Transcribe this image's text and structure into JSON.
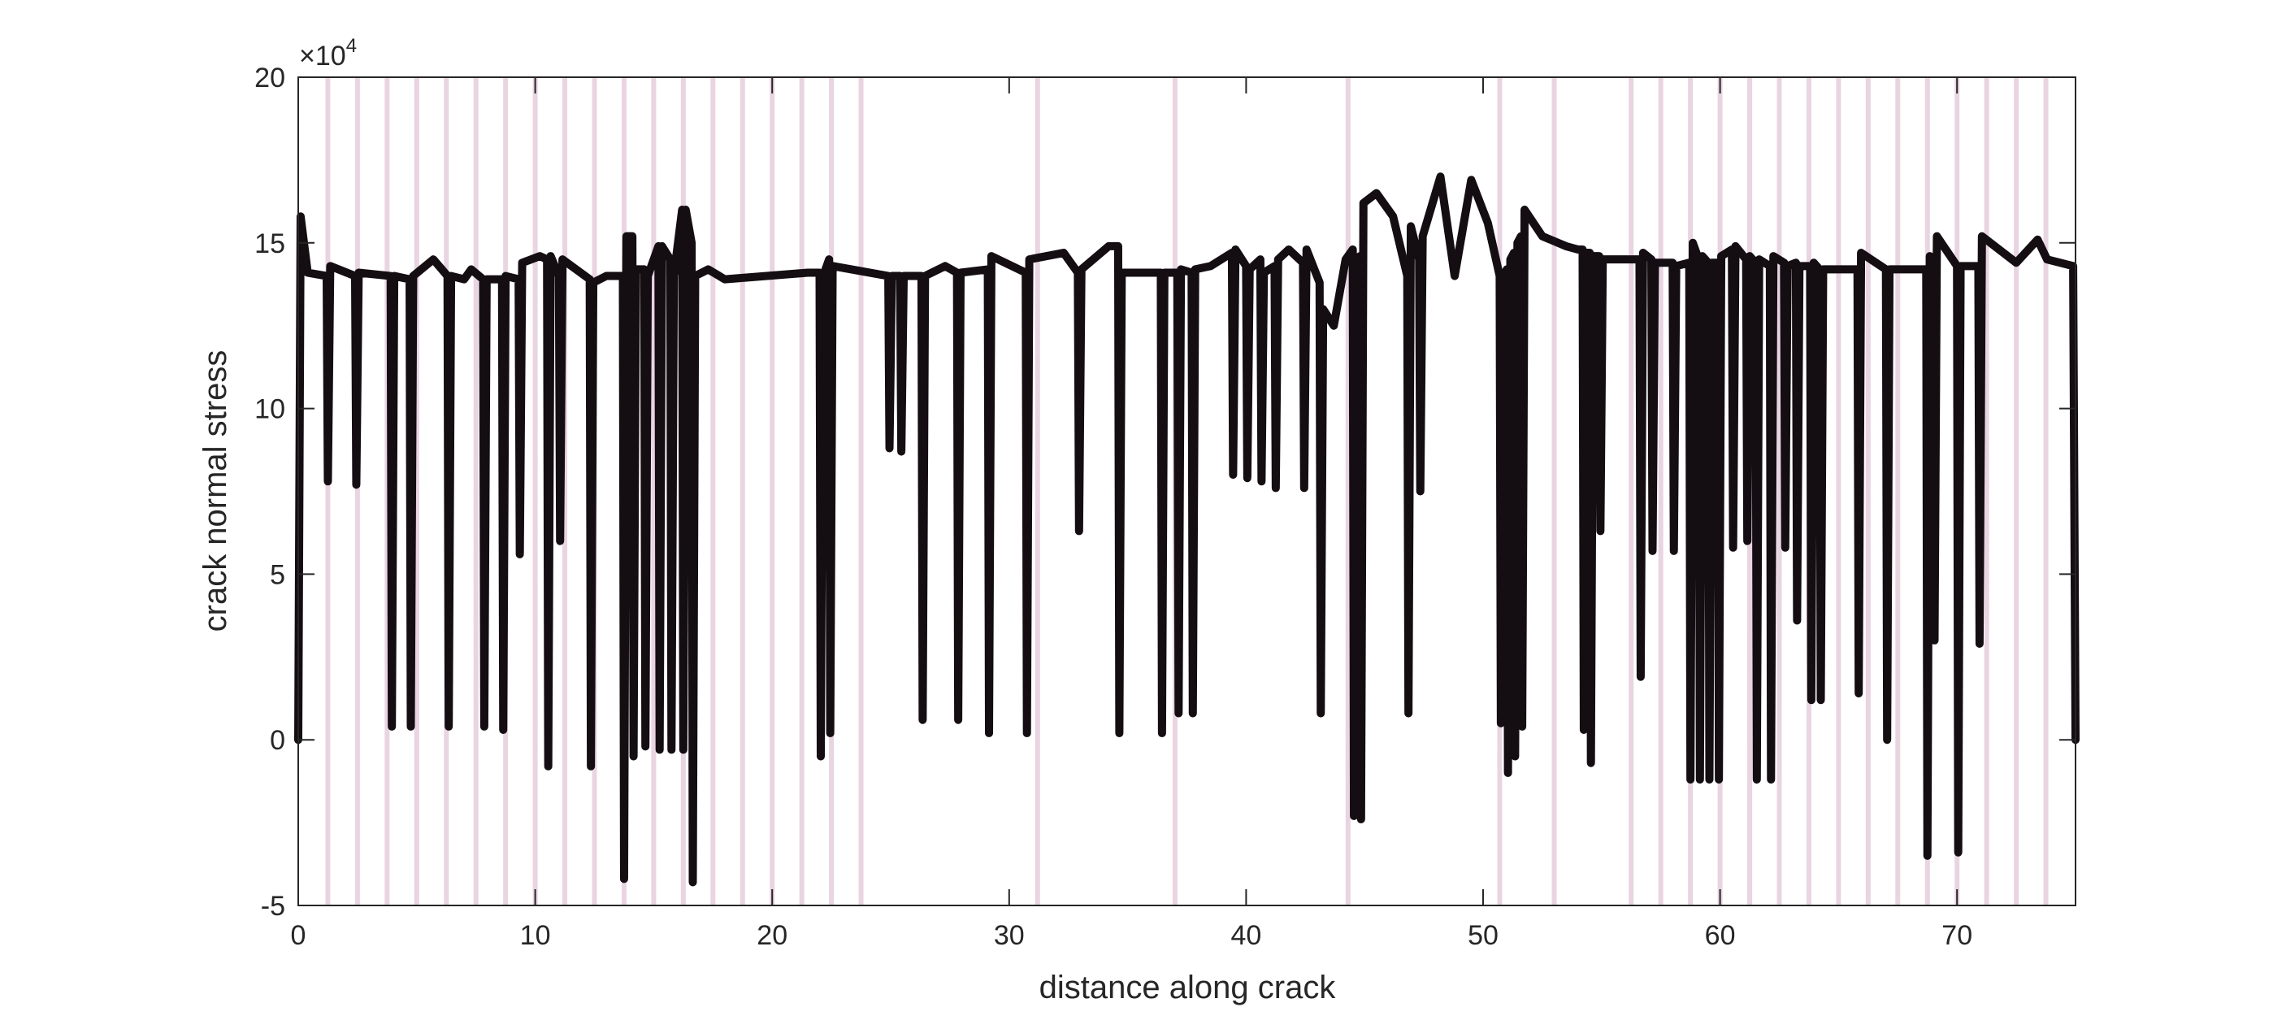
{
  "chart_data": {
    "type": "line",
    "x_label": "distance along crack",
    "y_label": "crack normal stress",
    "y_multiplier": {
      "base": "×10",
      "exponent": "4"
    },
    "xlim": [
      0,
      75
    ],
    "xticks": [
      0,
      10,
      20,
      30,
      40,
      50,
      60,
      70
    ],
    "ylim": [
      -5,
      20
    ],
    "yticks": [
      -5,
      0,
      5,
      10,
      15,
      20
    ],
    "vertical_lines": {
      "color": "#e9d4e2",
      "x": [
        1.25,
        2.5,
        3.75,
        5,
        6.25,
        7.5,
        8.75,
        10,
        11.25,
        12.5,
        13.75,
        15,
        16.25,
        17.5,
        18.75,
        20,
        21.25,
        22.5,
        23.75,
        31.2,
        37.0,
        44.3,
        50.7,
        53.0,
        56.25,
        57.5,
        58.75,
        60,
        61.25,
        62.5,
        63.75,
        65,
        66.25,
        67.5,
        68.75,
        70,
        71.25,
        72.5,
        73.75
      ]
    },
    "series": [
      {
        "color": "#140d12",
        "x": [
          0,
          0.1,
          0.4,
          1.2,
          1.25,
          1.35,
          2.4,
          2.45,
          2.55,
          3.9,
          3.95,
          4.05,
          4.7,
          4.75,
          4.85,
          5.7,
          6.3,
          6.35,
          6.45,
          7.0,
          7.3,
          7.8,
          7.85,
          7.95,
          8.6,
          8.65,
          8.75,
          9.3,
          9.35,
          9.45,
          10.2,
          10.5,
          10.55,
          10.65,
          11.0,
          11.05,
          11.15,
          12.3,
          12.35,
          12.45,
          13.0,
          13.7,
          13.75,
          13.85,
          14.1,
          14.15,
          14.25,
          14.6,
          14.65,
          14.75,
          15.2,
          15.25,
          15.35,
          15.7,
          15.75,
          15.85,
          16.2,
          16.25,
          16.35,
          16.6,
          16.65,
          16.75,
          17.3,
          18,
          21.5,
          22.0,
          22.05,
          22.15,
          22.4,
          22.45,
          22.55,
          24.9,
          24.95,
          25.05,
          25.4,
          25.45,
          25.55,
          26.3,
          26.35,
          26.45,
          27.3,
          27.8,
          27.85,
          27.95,
          29.1,
          29.15,
          29.25,
          30.7,
          30.75,
          30.85,
          32.3,
          32.9,
          32.95,
          33.05,
          34.2,
          34.6,
          34.65,
          34.75,
          36.4,
          36.45,
          36.55,
          37.1,
          37.15,
          37.25,
          37.7,
          37.75,
          37.85,
          38.5,
          39.4,
          39.45,
          39.55,
          40.0,
          40.05,
          40.15,
          40.6,
          40.65,
          40.75,
          41.2,
          41.25,
          41.35,
          41.8,
          42.4,
          42.45,
          42.55,
          43.1,
          43.15,
          43.25,
          43.7,
          44.2,
          44.5,
          44.55,
          44.65,
          44.8,
          44.85,
          44.95,
          45.5,
          46.2,
          46.8,
          46.85,
          46.95,
          47.3,
          47.35,
          47.45,
          48.2,
          48.8,
          49.5,
          50.2,
          50.7,
          50.75,
          50.85,
          51.0,
          51.05,
          51.15,
          51.3,
          51.35,
          51.45,
          51.6,
          51.65,
          51.75,
          52.5,
          53.5,
          54.0,
          54.2,
          54.25,
          54.35,
          54.5,
          54.55,
          54.65,
          54.9,
          54.95,
          55.05,
          56.6,
          56.65,
          56.75,
          57.1,
          57.15,
          57.25,
          58.0,
          58.05,
          58.15,
          58.7,
          58.75,
          58.85,
          59.1,
          59.15,
          59.25,
          59.5,
          59.55,
          59.65,
          59.9,
          59.95,
          60.05,
          60.5,
          60.55,
          60.65,
          61.1,
          61.15,
          61.25,
          61.5,
          61.55,
          61.65,
          62.1,
          62.15,
          62.25,
          62.7,
          62.75,
          62.85,
          63.2,
          63.25,
          63.35,
          63.8,
          63.85,
          63.95,
          64.2,
          64.25,
          64.35,
          65.8,
          65.85,
          65.95,
          67.0,
          67.05,
          67.15,
          68.7,
          68.75,
          68.85,
          69.0,
          69.05,
          69.15,
          70.0,
          70.05,
          70.15,
          70.9,
          70.95,
          71.05,
          72.5,
          73.4,
          73.8,
          74.9,
          75
        ],
        "values": [
          0,
          15.8,
          14.1,
          14,
          7.8,
          14.3,
          14,
          7.7,
          14.1,
          14,
          0.4,
          14,
          13.9,
          0.4,
          14,
          14.5,
          14,
          0.4,
          14,
          13.9,
          14.2,
          13.9,
          0.4,
          13.9,
          13.9,
          0.3,
          14,
          13.9,
          5.6,
          14.4,
          14.6,
          14.5,
          -0.8,
          14.6,
          14,
          6,
          14.5,
          13.9,
          -0.8,
          13.8,
          14,
          14,
          -4.2,
          15.2,
          15.2,
          -0.5,
          14.2,
          14.2,
          -0.2,
          14,
          14.9,
          -0.3,
          14.9,
          14.5,
          -0.3,
          14,
          16,
          -0.3,
          16,
          15,
          -4.3,
          14,
          14.2,
          13.9,
          14.1,
          14.1,
          -0.5,
          14,
          14.5,
          0.2,
          14.3,
          14,
          8.8,
          14,
          14,
          8.7,
          14,
          14,
          0.6,
          14,
          14.3,
          14.1,
          0.6,
          14.1,
          14.2,
          0.2,
          14.6,
          14.1,
          0.2,
          14.5,
          14.7,
          14.1,
          6.3,
          14.2,
          14.9,
          14.9,
          0.2,
          14.1,
          14.1,
          0.2,
          14.1,
          14.1,
          0.8,
          14.2,
          14.1,
          0.8,
          14.2,
          14.3,
          14.7,
          8,
          14.8,
          14.3,
          7.9,
          14.2,
          14.5,
          7.8,
          14.1,
          14.3,
          7.6,
          14.5,
          14.8,
          14.4,
          7.6,
          14.8,
          13.8,
          0.8,
          13,
          12.5,
          14.5,
          14.8,
          -2.3,
          14.5,
          14.6,
          -2.4,
          16.2,
          16.5,
          15.8,
          14,
          0.8,
          15.5,
          14.5,
          7.5,
          15.2,
          17,
          14,
          16.9,
          15.6,
          14,
          0.5,
          14,
          14.2,
          -1.0,
          14.5,
          14.7,
          -0.5,
          15,
          15.2,
          0.4,
          16,
          15.2,
          14.9,
          14.8,
          14.8,
          0.3,
          14.7,
          14.7,
          -0.7,
          14.6,
          14.6,
          6.3,
          14.5,
          14.5,
          1.9,
          14.7,
          14.5,
          5.7,
          14.4,
          14.4,
          5.7,
          14.3,
          14.4,
          -1.2,
          15,
          14.5,
          -1.2,
          14.6,
          14.4,
          -1.2,
          14.4,
          14.4,
          -1.2,
          14.6,
          14.8,
          5.8,
          14.9,
          14.5,
          6,
          14.6,
          14.4,
          -1.2,
          14.5,
          14.3,
          -1.2,
          14.6,
          14.4,
          5.8,
          14.3,
          14.4,
          3.6,
          14.3,
          14.3,
          1.2,
          14.4,
          14.2,
          1.2,
          14.2,
          14.2,
          1.4,
          14.7,
          14.2,
          0,
          14.2,
          14.2,
          -3.5,
          14.6,
          14.3,
          3,
          15.2,
          14.3,
          -3.4,
          14.3,
          14.3,
          2.9,
          15.2,
          14.4,
          15.1,
          14.5,
          14.3,
          0
        ]
      }
    ]
  }
}
